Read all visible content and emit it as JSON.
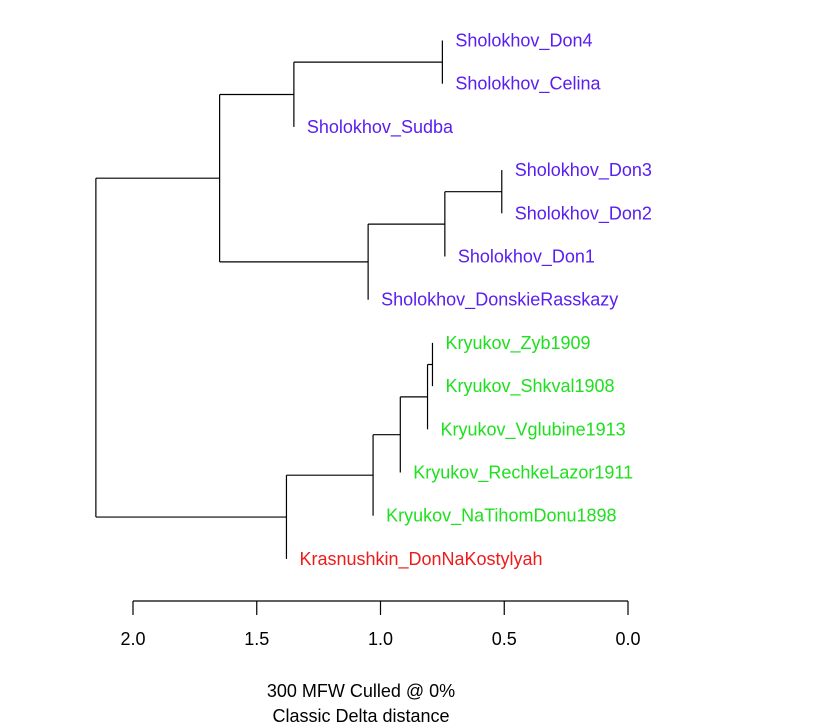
{
  "chart_data": {
    "type": "dendrogram",
    "axis": {
      "ticks": [
        {
          "value": 2.0,
          "label": "2.0"
        },
        {
          "value": 1.5,
          "label": "1.5"
        },
        {
          "value": 1.0,
          "label": "1.0"
        },
        {
          "value": 0.5,
          "label": "0.5"
        },
        {
          "value": 0.0,
          "label": "0.0"
        }
      ],
      "range": [
        2.0,
        0.0
      ]
    },
    "caption": {
      "line1": "300 MFW  Culled @ 0%",
      "line2": "Classic Delta distance"
    },
    "colors": {
      "sholokhov": "#5a1ef0",
      "kryukov": "#1ee01e",
      "krasnushkin": "#ee1b1b",
      "tree": "#000000"
    },
    "leaves": [
      {
        "id": "L1",
        "label": "Sholokhov_Don4",
        "group": "sholokhov"
      },
      {
        "id": "L2",
        "label": "Sholokhov_Celina",
        "group": "sholokhov"
      },
      {
        "id": "L3",
        "label": "Sholokhov_Sudba",
        "group": "sholokhov"
      },
      {
        "id": "L4",
        "label": "Sholokhov_Don3",
        "group": "sholokhov"
      },
      {
        "id": "L5",
        "label": "Sholokhov_Don2",
        "group": "sholokhov"
      },
      {
        "id": "L6",
        "label": "Sholokhov_Don1",
        "group": "sholokhov"
      },
      {
        "id": "L7",
        "label": "Sholokhov_DonskieRasskazy",
        "group": "sholokhov"
      },
      {
        "id": "L8",
        "label": "Kryukov_Zyb1909",
        "group": "kryukov"
      },
      {
        "id": "L9",
        "label": "Kryukov_Shkval1908",
        "group": "kryukov"
      },
      {
        "id": "L10",
        "label": "Kryukov_Vglubine1913",
        "group": "kryukov"
      },
      {
        "id": "L11",
        "label": "Kryukov_RechkeLazor1911",
        "group": "kryukov"
      },
      {
        "id": "L12",
        "label": "Kryukov_NaTihomDonu1898",
        "group": "kryukov"
      },
      {
        "id": "L13",
        "label": "Krasnushkin_DonNaKostylyah",
        "group": "krasnushkin"
      }
    ],
    "merges": [
      {
        "id": "N1",
        "height": 0.75,
        "children": [
          "L1",
          "L2"
        ]
      },
      {
        "id": "N2",
        "height": 1.35,
        "children": [
          "N1",
          "L3"
        ]
      },
      {
        "id": "N3",
        "height": 0.51,
        "children": [
          "L4",
          "L5"
        ]
      },
      {
        "id": "N4",
        "height": 0.74,
        "children": [
          "N3",
          "L6"
        ]
      },
      {
        "id": "N5",
        "height": 1.05,
        "children": [
          "N4",
          "L7"
        ]
      },
      {
        "id": "N6",
        "height": 1.65,
        "children": [
          "N2",
          "N5"
        ]
      },
      {
        "id": "N7",
        "height": 0.79,
        "children": [
          "L8",
          "L9"
        ]
      },
      {
        "id": "N8",
        "height": 0.81,
        "children": [
          "N7",
          "L10"
        ]
      },
      {
        "id": "N9",
        "height": 0.92,
        "children": [
          "N8",
          "L11"
        ]
      },
      {
        "id": "N10",
        "height": 1.03,
        "children": [
          "N9",
          "L12"
        ]
      },
      {
        "id": "N11",
        "height": 1.38,
        "children": [
          "N10",
          "L13"
        ]
      },
      {
        "id": "N12",
        "height": 2.15,
        "children": [
          "N6",
          "N11"
        ]
      }
    ]
  }
}
